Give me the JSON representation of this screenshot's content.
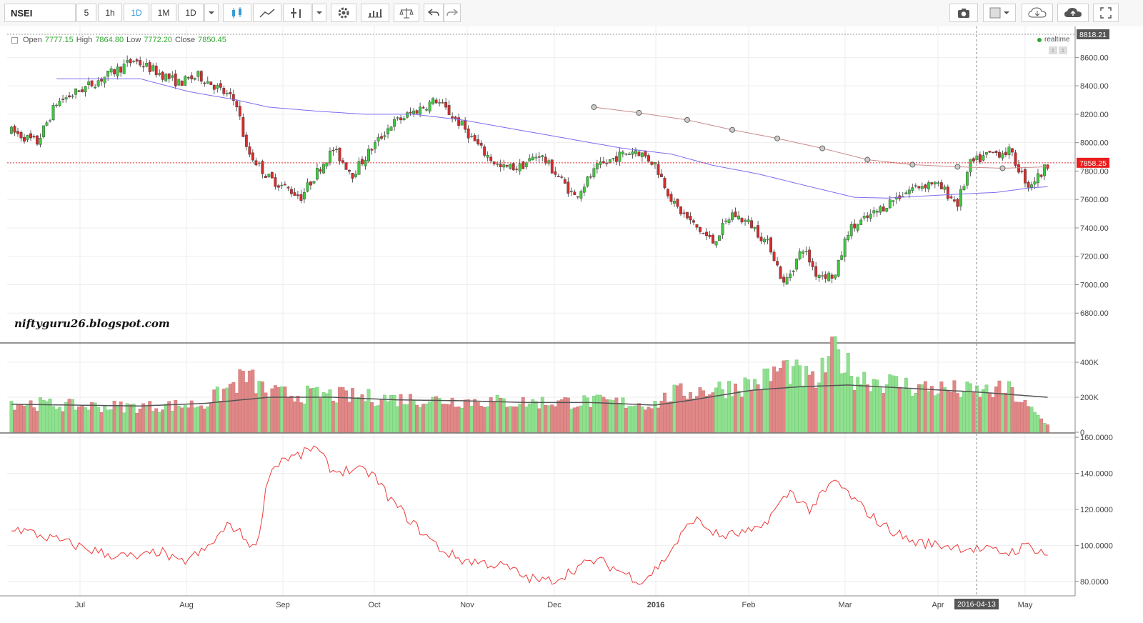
{
  "toolbar": {
    "symbol": "NSEI",
    "intervals": [
      "5",
      "1h",
      "1D",
      "1M",
      "1D"
    ],
    "active_interval": "1D",
    "icons": [
      "candles-icon",
      "line-chart-icon",
      "indicators-icon",
      "dropdown-icon",
      "settings-icon",
      "compare-icon",
      "balance-icon",
      "undo-icon",
      "redo-icon",
      "camera-icon",
      "square-icon",
      "cloud-download-icon",
      "cloud-upload-icon",
      "fullscreen-icon"
    ]
  },
  "legend": {
    "open_label": "Open",
    "open": "7777.15",
    "high_label": "High",
    "high": "7864.80",
    "low_label": "Low",
    "low": "7772.20",
    "close_label": "Close",
    "close": "7850.45",
    "realtime": "realtime"
  },
  "watermark": "niftyguru26.blogspot.com",
  "colors": {
    "up": "#3ec93e",
    "down": "#d42c2c",
    "ma_price": "#7b6cf0",
    "ma_long": "#c98a8a",
    "indicator": "#ef3a3a",
    "vol_up": "#8fe08f",
    "vol_down": "#e08888"
  },
  "chart_data": {
    "type": "candlestick",
    "price_axis": {
      "min": 6600,
      "max": 8818.21,
      "ticks": [
        "8600.00",
        "8400.00",
        "8200.00",
        "8000.00",
        "7800.00",
        "7600.00",
        "7400.00",
        "7200.00",
        "7000.00",
        "6800.00"
      ],
      "top_label": "8818.21",
      "last_label": "7858.25",
      "last_value": 7858.25
    },
    "volume_axis": {
      "ticks": [
        "400K",
        "200K",
        "0"
      ]
    },
    "indicator_axis": {
      "ticks": [
        "160.0000",
        "140.0000",
        "120.0000",
        "100.0000",
        "80.0000"
      ]
    },
    "x_labels": [
      "Jul",
      "Aug",
      "Sep",
      "Oct",
      "Nov",
      "Dec",
      "2016",
      "Feb",
      "Mar",
      "Apr",
      "May"
    ],
    "crosshair_label": "2016-04-13",
    "price_keypoints": [
      [
        0,
        8080
      ],
      [
        8,
        8000
      ],
      [
        14,
        8280
      ],
      [
        28,
        8450
      ],
      [
        38,
        8580
      ],
      [
        45,
        8500
      ],
      [
        52,
        8420
      ],
      [
        58,
        8470
      ],
      [
        62,
        8420
      ],
      [
        70,
        8280
      ],
      [
        73,
        7950
      ],
      [
        80,
        7750
      ],
      [
        90,
        7620
      ],
      [
        96,
        7830
      ],
      [
        100,
        7950
      ],
      [
        106,
        7780
      ],
      [
        112,
        7960
      ],
      [
        118,
        8130
      ],
      [
        126,
        8230
      ],
      [
        132,
        8300
      ],
      [
        140,
        8120
      ],
      [
        146,
        7950
      ],
      [
        152,
        7820
      ],
      [
        158,
        7830
      ],
      [
        164,
        7920
      ],
      [
        170,
        7760
      ],
      [
        175,
        7620
      ],
      [
        182,
        7820
      ],
      [
        188,
        7900
      ],
      [
        194,
        7950
      ],
      [
        200,
        7850
      ],
      [
        206,
        7560
      ],
      [
        212,
        7420
      ],
      [
        218,
        7300
      ],
      [
        224,
        7500
      ],
      [
        230,
        7420
      ],
      [
        236,
        7260
      ],
      [
        240,
        7000
      ],
      [
        246,
        7260
      ],
      [
        250,
        7080
      ],
      [
        256,
        7060
      ],
      [
        260,
        7380
      ],
      [
        268,
        7500
      ],
      [
        274,
        7600
      ],
      [
        280,
        7680
      ],
      [
        286,
        7720
      ],
      [
        290,
        7660
      ],
      [
        294,
        7570
      ],
      [
        298,
        7850
      ],
      [
        304,
        7920
      ],
      [
        310,
        7940
      ],
      [
        316,
        7700
      ],
      [
        320,
        7780
      ],
      [
        322,
        7850
      ]
    ],
    "ma_points": [
      [
        14,
        8450
      ],
      [
        40,
        8450
      ],
      [
        55,
        8360
      ],
      [
        70,
        8300
      ],
      [
        80,
        8250
      ],
      [
        96,
        8220
      ],
      [
        110,
        8200
      ],
      [
        125,
        8200
      ],
      [
        140,
        8160
      ],
      [
        155,
        8100
      ],
      [
        170,
        8040
      ],
      [
        190,
        7960
      ],
      [
        205,
        7920
      ],
      [
        218,
        7840
      ],
      [
        232,
        7780
      ],
      [
        250,
        7680
      ],
      [
        262,
        7615
      ],
      [
        272,
        7610
      ],
      [
        280,
        7620
      ],
      [
        292,
        7635
      ],
      [
        306,
        7650
      ],
      [
        316,
        7680
      ],
      [
        322,
        7690
      ]
    ],
    "ma_long_points": [
      [
        181,
        8250
      ],
      [
        195,
        8210
      ],
      [
        210,
        8160
      ],
      [
        224,
        8090
      ],
      [
        238,
        8030
      ],
      [
        252,
        7960
      ],
      [
        266,
        7880
      ],
      [
        280,
        7845
      ],
      [
        294,
        7830
      ],
      [
        308,
        7820
      ],
      [
        322,
        7830
      ]
    ],
    "ma_long_markers": [
      [
        181,
        8250
      ],
      [
        195,
        8210
      ],
      [
        210,
        8160
      ],
      [
        224,
        8090
      ],
      [
        238,
        8030
      ],
      [
        252,
        7960
      ],
      [
        266,
        7880
      ],
      [
        280,
        7845
      ],
      [
        294,
        7830
      ],
      [
        308,
        7820
      ]
    ],
    "volume_keypoints": [
      [
        0,
        170
      ],
      [
        20,
        150
      ],
      [
        40,
        145
      ],
      [
        60,
        160
      ],
      [
        73,
        320
      ],
      [
        80,
        220
      ],
      [
        100,
        210
      ],
      [
        120,
        190
      ],
      [
        140,
        180
      ],
      [
        160,
        170
      ],
      [
        180,
        175
      ],
      [
        200,
        160
      ],
      [
        206,
        220
      ],
      [
        220,
        250
      ],
      [
        232,
        280
      ],
      [
        240,
        370
      ],
      [
        250,
        280
      ],
      [
        256,
        470
      ],
      [
        262,
        320
      ],
      [
        280,
        260
      ],
      [
        300,
        230
      ],
      [
        310,
        240
      ],
      [
        322,
        40
      ]
    ],
    "volume_ma_keypoints": [
      [
        0,
        160
      ],
      [
        40,
        150
      ],
      [
        60,
        165
      ],
      [
        80,
        200
      ],
      [
        100,
        200
      ],
      [
        120,
        185
      ],
      [
        140,
        180
      ],
      [
        160,
        170
      ],
      [
        180,
        170
      ],
      [
        200,
        155
      ],
      [
        210,
        180
      ],
      [
        230,
        240
      ],
      [
        245,
        260
      ],
      [
        260,
        270
      ],
      [
        280,
        250
      ],
      [
        300,
        230
      ],
      [
        322,
        200
      ]
    ],
    "indicator_keypoints": [
      [
        0,
        110
      ],
      [
        10,
        105
      ],
      [
        20,
        100
      ],
      [
        30,
        95
      ],
      [
        40,
        93
      ],
      [
        46,
        97
      ],
      [
        52,
        90
      ],
      [
        60,
        97
      ],
      [
        68,
        112
      ],
      [
        76,
        98
      ],
      [
        80,
        140
      ],
      [
        84,
        148
      ],
      [
        90,
        150
      ],
      [
        94,
        155
      ],
      [
        100,
        141
      ],
      [
        106,
        142
      ],
      [
        112,
        140
      ],
      [
        118,
        125
      ],
      [
        126,
        110
      ],
      [
        134,
        97
      ],
      [
        140,
        92
      ],
      [
        148,
        90
      ],
      [
        154,
        88
      ],
      [
        160,
        82
      ],
      [
        166,
        80
      ],
      [
        170,
        82
      ],
      [
        176,
        88
      ],
      [
        182,
        92
      ],
      [
        190,
        85
      ],
      [
        196,
        80
      ],
      [
        202,
        90
      ],
      [
        212,
        115
      ],
      [
        220,
        105
      ],
      [
        232,
        108
      ],
      [
        242,
        130
      ],
      [
        248,
        120
      ],
      [
        256,
        136
      ],
      [
        262,
        125
      ],
      [
        270,
        112
      ],
      [
        280,
        102
      ],
      [
        290,
        100
      ],
      [
        300,
        98
      ],
      [
        310,
        96
      ],
      [
        316,
        100
      ],
      [
        322,
        95
      ]
    ]
  }
}
